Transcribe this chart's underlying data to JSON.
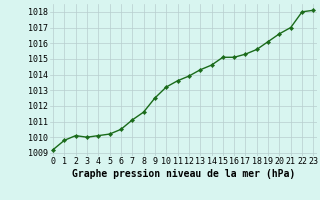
{
  "x": [
    0,
    1,
    2,
    3,
    4,
    5,
    6,
    7,
    8,
    9,
    10,
    11,
    12,
    13,
    14,
    15,
    16,
    17,
    18,
    19,
    20,
    21,
    22,
    23
  ],
  "y": [
    1009.2,
    1009.8,
    1010.1,
    1010.0,
    1010.1,
    1010.2,
    1010.5,
    1011.1,
    1011.6,
    1012.5,
    1013.2,
    1013.6,
    1013.9,
    1014.3,
    1014.6,
    1015.1,
    1015.1,
    1015.3,
    1015.6,
    1016.1,
    1016.6,
    1017.0,
    1018.0,
    1018.1
  ],
  "line_color": "#1a6b1a",
  "marker": "D",
  "marker_size": 2.2,
  "line_width": 1.0,
  "bg_color": "#d8f5f0",
  "grid_color": "#b8cece",
  "xlabel": "Graphe pression niveau de la mer (hPa)",
  "xlabel_fontsize": 7.0,
  "xlabel_weight": "bold",
  "tick_fontsize": 6.0,
  "ytick_labels": [
    1009,
    1010,
    1011,
    1012,
    1013,
    1014,
    1015,
    1016,
    1017,
    1018
  ],
  "ylim": [
    1008.8,
    1018.5
  ],
  "xlim": [
    -0.3,
    23.3
  ],
  "xtick_labels": [
    "0",
    "1",
    "2",
    "3",
    "4",
    "5",
    "6",
    "7",
    "8",
    "9",
    "10",
    "11",
    "12",
    "13",
    "14",
    "15",
    "16",
    "17",
    "18",
    "19",
    "20",
    "21",
    "22",
    "23"
  ]
}
